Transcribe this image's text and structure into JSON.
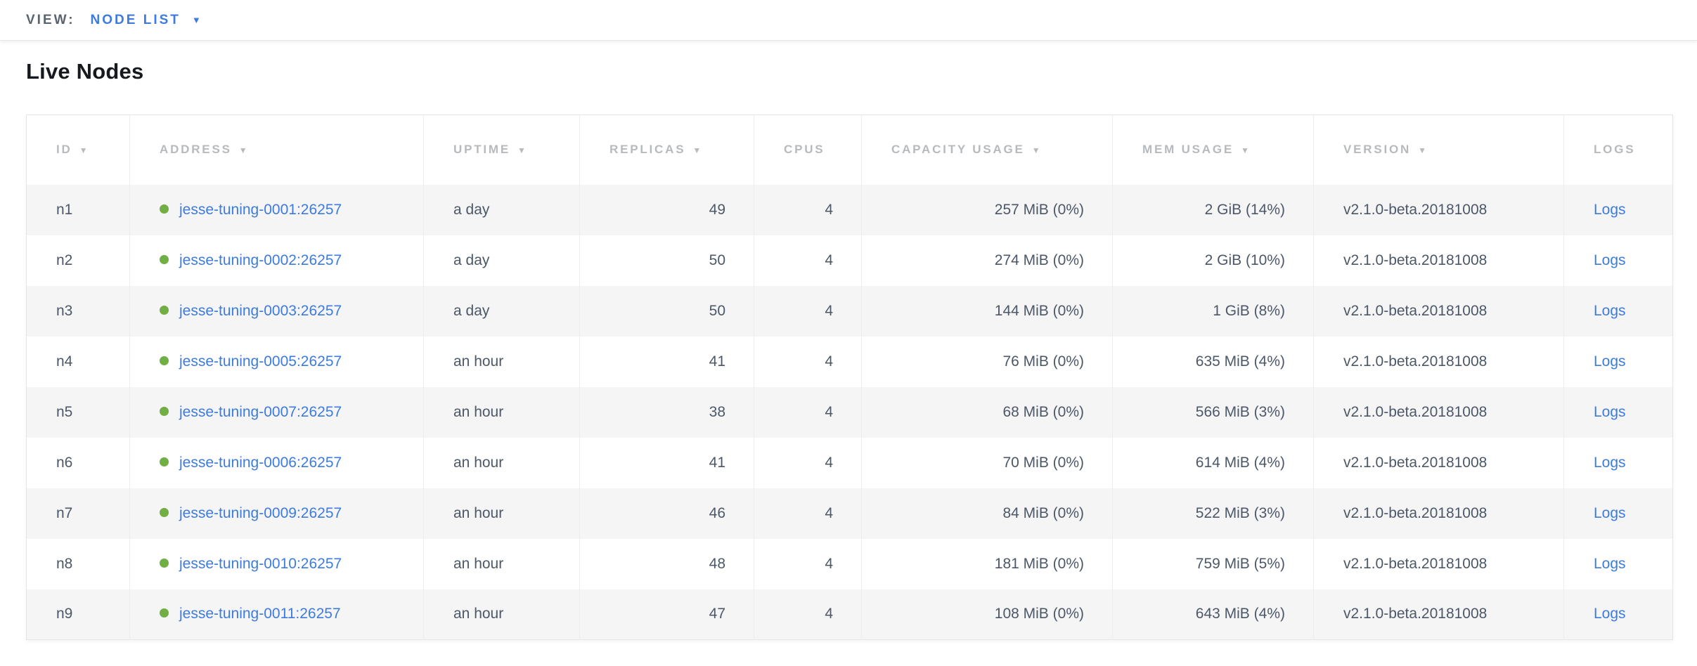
{
  "toolbar": {
    "view_label": "VIEW:",
    "view_value": "NODE LIST"
  },
  "page": {
    "title": "Live Nodes"
  },
  "icons": {
    "caret_down": "▼",
    "sort_arrow": "▼"
  },
  "colors": {
    "accent_blue": "#3d7be0",
    "status_green": "#71ae43",
    "header_text": "#b7babd",
    "body_text": "#4c5768",
    "heading_text": "#16191d",
    "row_alt_bg": "#f5f5f6",
    "border": "#e4e5e7"
  },
  "table": {
    "columns": [
      {
        "key": "id",
        "label": "ID",
        "sortable": true,
        "align": "left"
      },
      {
        "key": "address",
        "label": "ADDRESS",
        "sortable": true,
        "align": "left"
      },
      {
        "key": "uptime",
        "label": "UPTIME",
        "sortable": true,
        "align": "left"
      },
      {
        "key": "replicas",
        "label": "REPLICAS",
        "sortable": true,
        "align": "right"
      },
      {
        "key": "cpus",
        "label": "CPUS",
        "sortable": false,
        "align": "right"
      },
      {
        "key": "capacity",
        "label": "CAPACITY USAGE",
        "sortable": true,
        "align": "right"
      },
      {
        "key": "mem",
        "label": "MEM USAGE",
        "sortable": true,
        "align": "right"
      },
      {
        "key": "version",
        "label": "VERSION",
        "sortable": true,
        "align": "left"
      },
      {
        "key": "logs",
        "label": "LOGS",
        "sortable": false,
        "align": "left"
      }
    ],
    "rows": [
      {
        "id": "n1",
        "address": "jesse-tuning-0001:26257",
        "uptime": "a day",
        "replicas": "49",
        "cpus": "4",
        "capacity": "257 MiB (0%)",
        "mem": "2 GiB (14%)",
        "version": "v2.1.0-beta.20181008",
        "logs": "Logs"
      },
      {
        "id": "n2",
        "address": "jesse-tuning-0002:26257",
        "uptime": "a day",
        "replicas": "50",
        "cpus": "4",
        "capacity": "274 MiB (0%)",
        "mem": "2 GiB (10%)",
        "version": "v2.1.0-beta.20181008",
        "logs": "Logs"
      },
      {
        "id": "n3",
        "address": "jesse-tuning-0003:26257",
        "uptime": "a day",
        "replicas": "50",
        "cpus": "4",
        "capacity": "144 MiB (0%)",
        "mem": "1 GiB (8%)",
        "version": "v2.1.0-beta.20181008",
        "logs": "Logs"
      },
      {
        "id": "n4",
        "address": "jesse-tuning-0005:26257",
        "uptime": "an hour",
        "replicas": "41",
        "cpus": "4",
        "capacity": "76 MiB (0%)",
        "mem": "635 MiB (4%)",
        "version": "v2.1.0-beta.20181008",
        "logs": "Logs"
      },
      {
        "id": "n5",
        "address": "jesse-tuning-0007:26257",
        "uptime": "an hour",
        "replicas": "38",
        "cpus": "4",
        "capacity": "68 MiB (0%)",
        "mem": "566 MiB (3%)",
        "version": "v2.1.0-beta.20181008",
        "logs": "Logs"
      },
      {
        "id": "n6",
        "address": "jesse-tuning-0006:26257",
        "uptime": "an hour",
        "replicas": "41",
        "cpus": "4",
        "capacity": "70 MiB (0%)",
        "mem": "614 MiB (4%)",
        "version": "v2.1.0-beta.20181008",
        "logs": "Logs"
      },
      {
        "id": "n7",
        "address": "jesse-tuning-0009:26257",
        "uptime": "an hour",
        "replicas": "46",
        "cpus": "4",
        "capacity": "84 MiB (0%)",
        "mem": "522 MiB (3%)",
        "version": "v2.1.0-beta.20181008",
        "logs": "Logs"
      },
      {
        "id": "n8",
        "address": "jesse-tuning-0010:26257",
        "uptime": "an hour",
        "replicas": "48",
        "cpus": "4",
        "capacity": "181 MiB (0%)",
        "mem": "759 MiB (5%)",
        "version": "v2.1.0-beta.20181008",
        "logs": "Logs"
      },
      {
        "id": "n9",
        "address": "jesse-tuning-0011:26257",
        "uptime": "an hour",
        "replicas": "47",
        "cpus": "4",
        "capacity": "108 MiB (0%)",
        "mem": "643 MiB (4%)",
        "version": "v2.1.0-beta.20181008",
        "logs": "Logs"
      }
    ]
  }
}
